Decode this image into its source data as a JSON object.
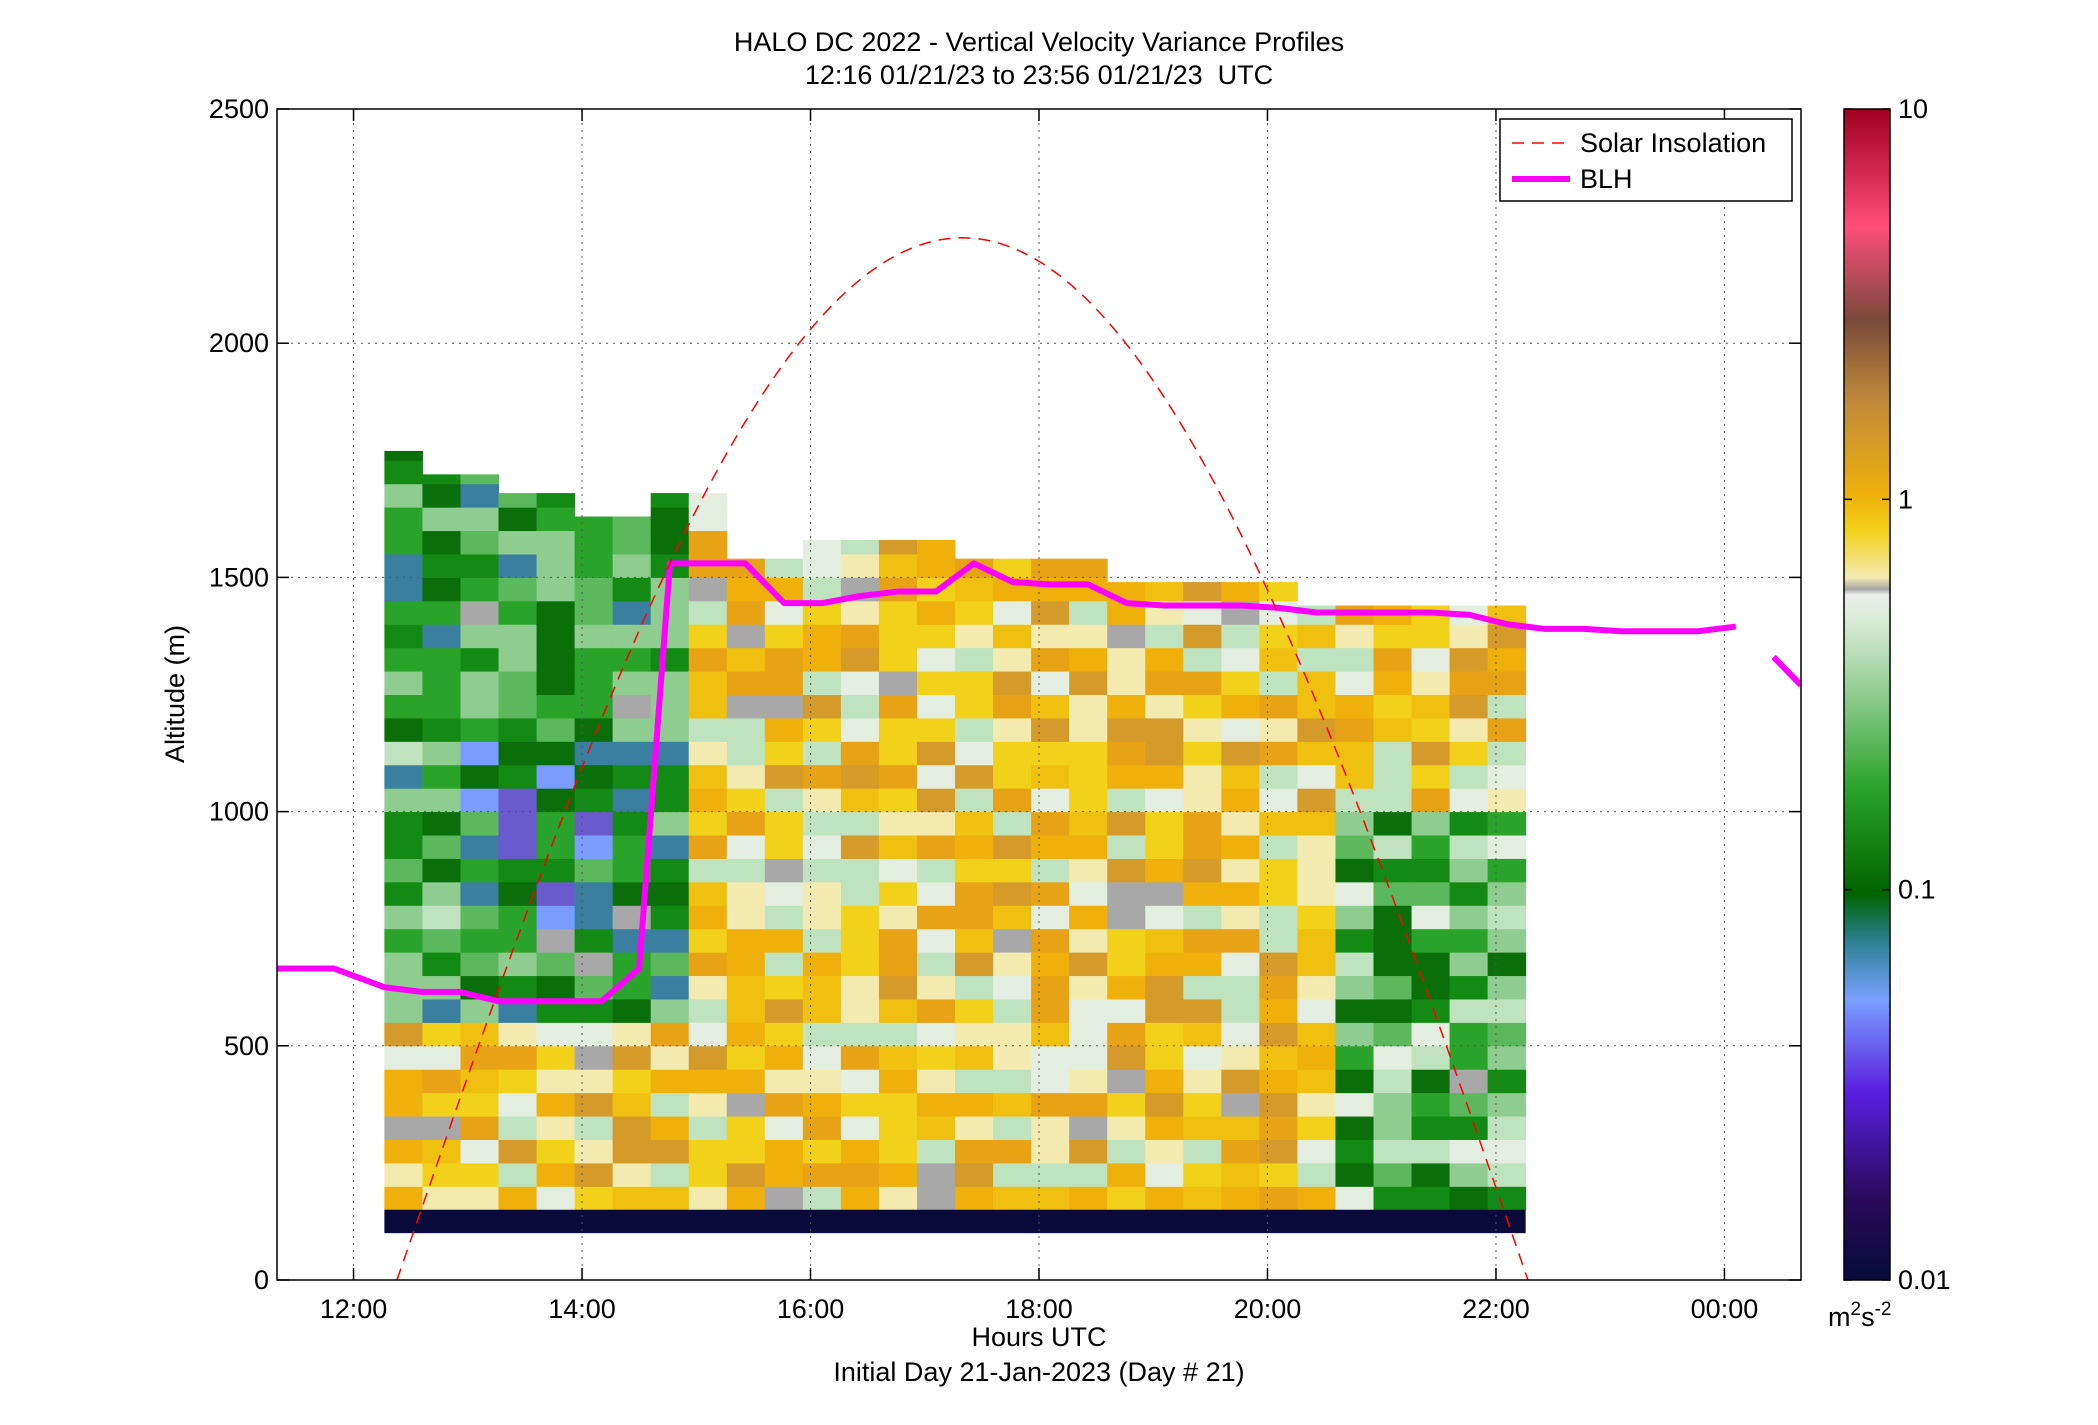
{
  "chart_data": {
    "type": "heatmap",
    "title": "HALO DC 2022 - Vertical Velocity Variance Profiles",
    "subtitle": "12:16 01/21/23 to 23:56 01/21/23  UTC",
    "xlabel": "Hours UTC",
    "xlabel2": "Initial Day 21-Jan-2023 (Day # 21)",
    "ylabel": "Altitude (m)",
    "x_ticks": [
      "12:00",
      "14:00",
      "16:00",
      "18:00",
      "20:00",
      "22:00",
      "00:00"
    ],
    "x_tick_hours": [
      12,
      14,
      16,
      18,
      20,
      22,
      24
    ],
    "xlim_hours": [
      11.33,
      24.67
    ],
    "y_ticks": [
      0,
      500,
      1000,
      1500,
      2000,
      2500
    ],
    "ylim": [
      0,
      2500
    ],
    "grid": true,
    "colorbar": {
      "scale": "log",
      "range": [
        0.01,
        10
      ],
      "ticks": [
        "0.01",
        "0.1",
        "1",
        "10"
      ],
      "tick_values": [
        0.01,
        0.1,
        1,
        10
      ],
      "units_base": "m",
      "units_sup1": "2",
      "units_mid": "s",
      "units_sup2": "-2"
    },
    "legend": {
      "placement": "top-right",
      "entries": [
        {
          "label": "Solar Insolation",
          "color": "#ff0000",
          "style": "dashed"
        },
        {
          "label": "BLH",
          "color": "#ff00ff",
          "style": "solid"
        }
      ]
    },
    "heatmap": {
      "time_start_hours": 12.27,
      "time_step_hours": 0.333,
      "alt_start_m": 150,
      "alt_step_m": 50,
      "surface_band_m": [
        100,
        150
      ],
      "surface_band_value": 0.01,
      "column_top_m": [
        1770,
        1720,
        1720,
        1680,
        1680,
        1630,
        1630,
        1680,
        1680,
        1540,
        1540,
        1580,
        1580,
        1580,
        1580,
        1540,
        1540,
        1540,
        1540,
        1490,
        1490,
        1490,
        1490,
        1490,
        1440,
        1440,
        1440,
        1440,
        1440,
        1440
      ]
    },
    "series": [
      {
        "name": "BLH",
        "x_hours": [
          11.33,
          11.83,
          12.27,
          12.6,
          12.93,
          13.27,
          13.6,
          13.93,
          14.17,
          14.5,
          14.77,
          15.1,
          15.43,
          15.77,
          16.1,
          16.43,
          16.77,
          17.1,
          17.43,
          17.77,
          18.1,
          18.43,
          18.77,
          19.1,
          19.43,
          19.77,
          20.1,
          20.43,
          20.77,
          21.1,
          21.43,
          21.77,
          22.1,
          22.43,
          22.77,
          23.1,
          23.43,
          23.77,
          24.1
        ],
        "y": [
          665,
          665,
          625,
          615,
          615,
          595,
          595,
          595,
          595,
          665,
          1530,
          1530,
          1530,
          1445,
          1445,
          1460,
          1470,
          1470,
          1530,
          1490,
          1485,
          1485,
          1445,
          1440,
          1440,
          1440,
          1435,
          1425,
          1425,
          1425,
          1425,
          1420,
          1400,
          1390,
          1390,
          1385,
          1385,
          1385,
          1395
        ]
      },
      {
        "name": "BLH-tail",
        "x_hours": [
          24.43,
          24.67
        ],
        "y": [
          1330,
          1270
        ]
      },
      {
        "name": "Solar Insolation",
        "peak_hours": 17.33,
        "half_width_hours": 4.95,
        "peak_m": 2225
      }
    ]
  }
}
